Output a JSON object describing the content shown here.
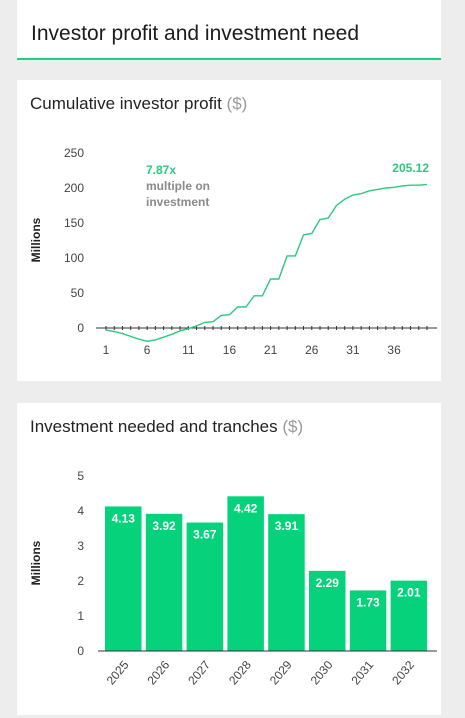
{
  "header": {
    "title": "Investor profit and investment need"
  },
  "colors": {
    "accent": "#1fcf84",
    "bar": "#05d27a",
    "line": "#2bc97f"
  },
  "profit_panel": {
    "title": "Cumulative investor profit",
    "unit": "($)"
  },
  "tranche_panel": {
    "title": "Investment needed and tranches",
    "unit": "($)"
  },
  "chart_data": [
    {
      "type": "line",
      "title": "Cumulative investor profit ($)",
      "ylabel": "Millions",
      "xlabel": "",
      "ylim": [
        0,
        250
      ],
      "yticks": [
        0,
        50,
        100,
        150,
        200,
        250
      ],
      "xticks": [
        1,
        6,
        11,
        16,
        21,
        26,
        31,
        36
      ],
      "grid": false,
      "x": [
        1,
        2,
        3,
        4,
        5,
        6,
        7,
        8,
        9,
        10,
        11,
        12,
        13,
        14,
        15,
        16,
        17,
        18,
        19,
        20,
        21,
        22,
        23,
        24,
        25,
        26,
        27,
        28,
        29,
        30,
        31,
        32,
        33,
        34,
        35,
        36,
        37,
        38,
        39,
        40
      ],
      "y": [
        -3,
        -5,
        -8,
        -12,
        -16,
        -19,
        -17,
        -13,
        -9,
        -4,
        -1,
        3,
        8,
        9,
        18,
        19,
        30,
        30,
        46,
        46,
        70,
        70,
        103,
        103,
        133,
        135,
        155,
        157,
        175,
        184,
        190,
        192,
        196,
        198,
        200,
        201,
        203,
        204,
        204,
        205.12
      ],
      "annotations": {
        "multiple_value": "7.87x",
        "multiple_text_1": "multiple on",
        "multiple_text_2": "investment",
        "end_value": "205.12"
      }
    },
    {
      "type": "bar",
      "title": "Investment needed and tranches ($)",
      "ylabel": "Millions",
      "xlabel": "",
      "ylim": [
        0,
        5
      ],
      "yticks": [
        0,
        1,
        2,
        3,
        4,
        5
      ],
      "grid": false,
      "categories": [
        "2025",
        "2026",
        "2027",
        "2028",
        "2029",
        "2030",
        "2031",
        "2032"
      ],
      "values": [
        4.13,
        3.92,
        3.67,
        4.42,
        3.91,
        2.29,
        1.73,
        2.01
      ],
      "labels": [
        "4.13",
        "3.92",
        "3.67",
        "4.42",
        "3.91",
        "2.29",
        "1.73",
        "2.01"
      ]
    }
  ]
}
